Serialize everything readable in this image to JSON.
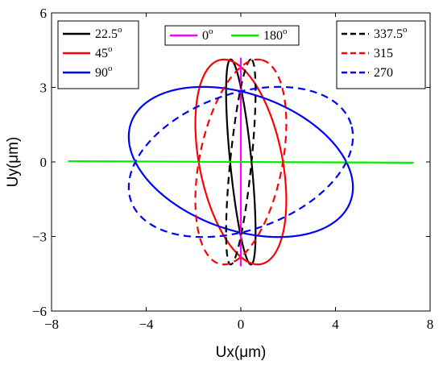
{
  "chart_data": {
    "type": "line",
    "title": "",
    "xlabel": "Ux(μm)",
    "ylabel": "Uy(μm)",
    "xlim": [
      -8,
      8
    ],
    "ylim": [
      -6,
      6
    ],
    "xticks": [
      -8,
      -4,
      0,
      4,
      8
    ],
    "yticks": [
      -6,
      -3,
      0,
      3,
      6
    ],
    "xtick_labels": [
      "−8",
      "−4",
      "0",
      "4",
      "8"
    ],
    "ytick_labels": [
      "−6",
      "−3",
      "0",
      "3",
      "6"
    ],
    "grid": false,
    "legends": [
      {
        "placement": "top-left",
        "entries": [
          {
            "series": 0,
            "label": "22.5",
            "sup": "o"
          },
          {
            "series": 1,
            "label": "45",
            "sup": "o"
          },
          {
            "series": 2,
            "label": "90",
            "sup": "o"
          }
        ]
      },
      {
        "placement": "top-center",
        "entries": [
          {
            "series": 3,
            "label": "0",
            "sup": "o"
          },
          {
            "series": 4,
            "label": "180",
            "sup": "o"
          }
        ]
      },
      {
        "placement": "top-right",
        "entries": [
          {
            "series": 5,
            "label": "337.5",
            "sup": "o"
          },
          {
            "series": 6,
            "label": "315",
            "sup": ""
          },
          {
            "series": 7,
            "label": "270",
            "sup": ""
          }
        ]
      }
    ],
    "series": [
      {
        "color": "#000000",
        "style": "solid",
        "shape": "ellipse",
        "center": [
          0,
          0
        ],
        "semi_major": 4.15,
        "semi_minor": 0.45,
        "major_angle_deg": 96
      },
      {
        "color": "#ff0000",
        "style": "solid",
        "shape": "ellipse",
        "center": [
          0,
          0
        ],
        "semi_major": 4.2,
        "semi_minor": 1.75,
        "major_angle_deg": 102
      },
      {
        "color": "#0000ff",
        "style": "solid",
        "shape": "ellipse",
        "center": [
          0,
          0
        ],
        "semi_major": 4.9,
        "semi_minor": 2.75,
        "major_angle_deg": 162
      },
      {
        "color": "#ff00ff",
        "style": "solid",
        "shape": "segment",
        "x": [
          0,
          0
        ],
        "y": [
          -4.2,
          4.2
        ]
      },
      {
        "color": "#00ee00",
        "style": "solid",
        "shape": "segment",
        "x": [
          -7.3,
          7.3
        ],
        "y": [
          0.03,
          -0.03
        ]
      },
      {
        "color": "#000000",
        "style": "dashed",
        "shape": "ellipse",
        "center": [
          0,
          0
        ],
        "semi_major": 4.15,
        "semi_minor": 0.45,
        "major_angle_deg": 84
      },
      {
        "color": "#ff0000",
        "style": "dashed",
        "shape": "ellipse",
        "center": [
          0,
          0
        ],
        "semi_major": 4.2,
        "semi_minor": 1.75,
        "major_angle_deg": 78
      },
      {
        "color": "#0000ff",
        "style": "dashed",
        "shape": "ellipse",
        "center": [
          0,
          0
        ],
        "semi_major": 4.9,
        "semi_minor": 2.75,
        "major_angle_deg": 18
      }
    ]
  }
}
